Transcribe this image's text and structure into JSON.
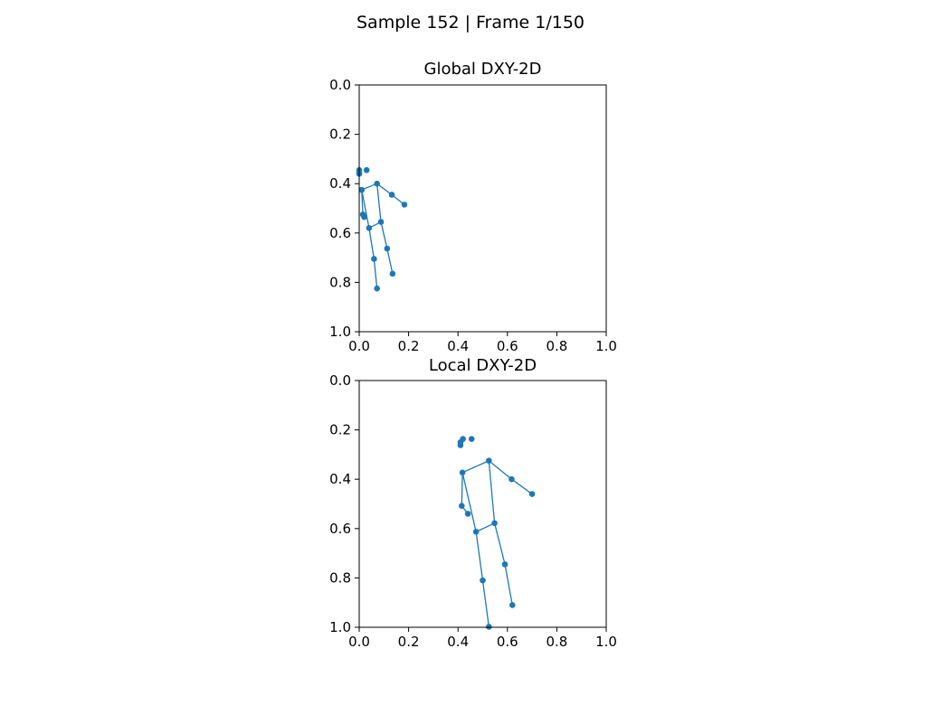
{
  "suptitle": "Sample 152  |  Frame 1/150",
  "colors": {
    "skeleton": "#1f77b4",
    "axes": "#000000",
    "background": "#ffffff"
  },
  "chart_data": [
    {
      "type": "scatter",
      "title": "Global DXY-2D",
      "xlim": [
        0,
        1
      ],
      "ylim": [
        1,
        0
      ],
      "y_inverted": true,
      "grid": false,
      "xticks": [
        "0.0",
        "0.2",
        "0.4",
        "0.6",
        "0.8",
        "1.0"
      ],
      "yticks": [
        "0.0",
        "0.2",
        "0.4",
        "0.6",
        "0.8",
        "1.0"
      ],
      "points": [
        {
          "x": 0.0,
          "y": 0.345
        },
        {
          "x": 0.03,
          "y": 0.345
        },
        {
          "x": 0.0,
          "y": 0.355
        },
        {
          "x": 0.0,
          "y": 0.36
        },
        {
          "x": 0.072,
          "y": 0.4
        },
        {
          "x": 0.01,
          "y": 0.425
        },
        {
          "x": 0.132,
          "y": 0.445
        },
        {
          "x": 0.183,
          "y": 0.485
        },
        {
          "x": 0.015,
          "y": 0.525
        },
        {
          "x": 0.02,
          "y": 0.535
        },
        {
          "x": 0.088,
          "y": 0.555
        },
        {
          "x": 0.04,
          "y": 0.58
        },
        {
          "x": 0.113,
          "y": 0.663
        },
        {
          "x": 0.06,
          "y": 0.705
        },
        {
          "x": 0.135,
          "y": 0.765
        },
        {
          "x": 0.072,
          "y": 0.825
        }
      ],
      "edges": [
        [
          4,
          5
        ],
        [
          4,
          6
        ],
        [
          6,
          7
        ],
        [
          5,
          8
        ],
        [
          8,
          9
        ],
        [
          4,
          10
        ],
        [
          5,
          11
        ],
        [
          10,
          11
        ],
        [
          10,
          12
        ],
        [
          12,
          14
        ],
        [
          11,
          13
        ],
        [
          13,
          15
        ]
      ]
    },
    {
      "type": "scatter",
      "title": "Local  DXY-2D",
      "xlim": [
        0,
        1
      ],
      "ylim": [
        1,
        0
      ],
      "y_inverted": true,
      "grid": false,
      "xticks": [
        "0.0",
        "0.2",
        "0.4",
        "0.6",
        "0.8",
        "1.0"
      ],
      "yticks": [
        "0.0",
        "0.2",
        "0.4",
        "0.6",
        "0.8",
        "1.0"
      ],
      "points": [
        {
          "x": 0.42,
          "y": 0.237
        },
        {
          "x": 0.455,
          "y": 0.237
        },
        {
          "x": 0.41,
          "y": 0.25
        },
        {
          "x": 0.41,
          "y": 0.262
        },
        {
          "x": 0.525,
          "y": 0.325
        },
        {
          "x": 0.418,
          "y": 0.373
        },
        {
          "x": 0.617,
          "y": 0.4
        },
        {
          "x": 0.7,
          "y": 0.46
        },
        {
          "x": 0.415,
          "y": 0.508
        },
        {
          "x": 0.44,
          "y": 0.54
        },
        {
          "x": 0.548,
          "y": 0.578
        },
        {
          "x": 0.473,
          "y": 0.613
        },
        {
          "x": 0.59,
          "y": 0.745
        },
        {
          "x": 0.5,
          "y": 0.81
        },
        {
          "x": 0.62,
          "y": 0.91
        },
        {
          "x": 0.525,
          "y": 0.998
        }
      ],
      "edges": [
        [
          4,
          5
        ],
        [
          4,
          6
        ],
        [
          6,
          7
        ],
        [
          5,
          8
        ],
        [
          8,
          9
        ],
        [
          4,
          10
        ],
        [
          5,
          11
        ],
        [
          10,
          11
        ],
        [
          10,
          12
        ],
        [
          12,
          14
        ],
        [
          11,
          13
        ],
        [
          13,
          15
        ]
      ]
    }
  ]
}
